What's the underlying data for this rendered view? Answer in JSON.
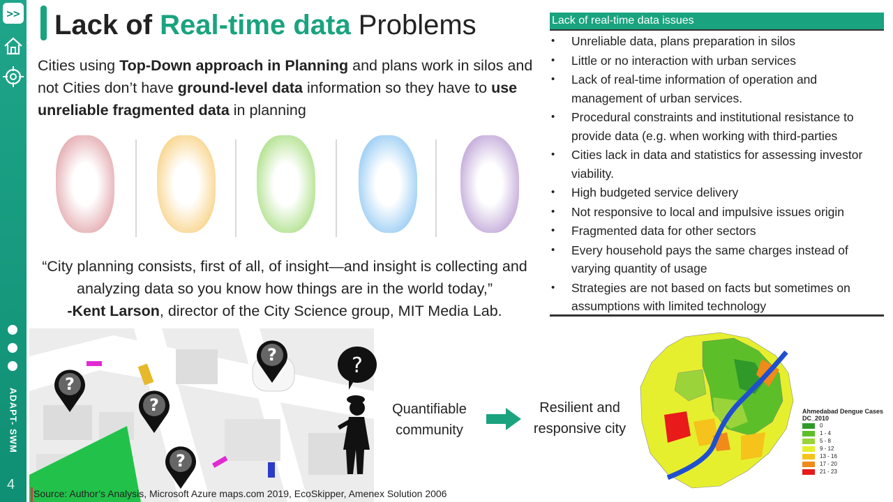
{
  "sidebar": {
    "next_label": ">>",
    "vertical_label": "ADAPT- SWM",
    "page_number": "4"
  },
  "title": {
    "part1": "Lack of",
    "part2": "Real-time data",
    "part3": "Problems"
  },
  "intro": {
    "s1": "Cities using ",
    "b1": "Top-Down approach in Planning",
    "s2": "  and plans work in silos and not Cities don’t have ",
    "b2": "ground-level data",
    "s3": " information so they have to ",
    "b3": "use unreliable fragmented data",
    "s4": " in planning"
  },
  "blobs": {
    "colors": [
      "#d9888f",
      "#f6c25a",
      "#8fd45c",
      "#6fb8ef",
      "#a985c9"
    ]
  },
  "quote": {
    "line1": "“City planning consists, first of all, of insight—and insight is collecting and analyzing data so you know how things are in the world today,”",
    "author": "-Kent Larson",
    "rest": ", director of the City Science group, MIT Media Lab."
  },
  "panel": {
    "heading": "Lack of real-time data issues",
    "items": [
      "Unreliable data, plans preparation in silos",
      "Little or no interaction with urban services",
      "Lack of real-time information of operation and management of urban services.",
      "Procedural constraints and institutional resistance to provide data (e.g. when working with third-parties",
      "Cities lack in data and statistics for assessing investor viability.",
      "High budgeted service delivery",
      "Not responsive to local and impulsive issues origin",
      "Fragmented data for other sectors",
      "Every household pays the same charges instead of varying quantity of usage",
      "Strategies are not based on facts but sometimes on assumptions with limited technology"
    ]
  },
  "flow": {
    "left_label": "Quantifiable community",
    "right_label": "Resilient and responsive city"
  },
  "legend": {
    "title": "Ahmedabad Dengue Cases",
    "subtitle": "DC_2010",
    "classes": [
      {
        "label": "0",
        "color": "#2f9a2a"
      },
      {
        "label": "1 - 4",
        "color": "#5cbf2a"
      },
      {
        "label": "5 - 8",
        "color": "#9ad43a"
      },
      {
        "label": "9 - 12",
        "color": "#e6ef2e"
      },
      {
        "label": "13 - 16",
        "color": "#f5c31c"
      },
      {
        "label": "17 - 20",
        "color": "#f08a1a"
      },
      {
        "label": "21 - 23",
        "color": "#e81a1a"
      }
    ]
  },
  "source": "Source: Author’s Analysis, Microsoft Azure maps.com 2019, EcoSkipper, Amenex Solution  2006"
}
